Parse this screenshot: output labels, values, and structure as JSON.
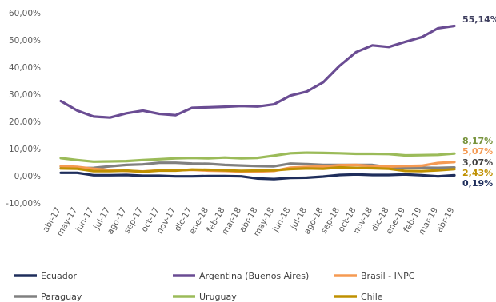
{
  "chart_data": {
    "type": "line",
    "title": "",
    "xlabel": "",
    "ylabel": "",
    "ylim": [
      -10,
      60
    ],
    "yticks": [
      "-10,00%",
      "0,00%",
      "10,00%",
      "20,00%",
      "30,00%",
      "40,00%",
      "50,00%",
      "60,00%"
    ],
    "ytick_values": [
      -10,
      0,
      10,
      20,
      30,
      40,
      50,
      60
    ],
    "grid": false,
    "legend_position": "bottom",
    "categories": [
      "abr-17",
      "may-17",
      "jun-17",
      "jul-17",
      "ago-17",
      "sep-17",
      "oct-17",
      "nov-17",
      "dic-17",
      "ene-18",
      "feb-18",
      "mar-18",
      "abr-18",
      "may-18",
      "jun-18",
      "jul-18",
      "ago-18",
      "sep-18",
      "oct-18",
      "nov-18",
      "dic-18",
      "ene-19",
      "feb-19",
      "mar-19",
      "abr-19"
    ],
    "series": [
      {
        "name": "Ecuador",
        "color": "#1f2e5c",
        "end_label": "0,19%",
        "values": [
          1.1,
          1.1,
          0.2,
          0.2,
          0.3,
          0.0,
          0.0,
          -0.2,
          -0.2,
          -0.1,
          -0.1,
          -0.2,
          -1.0,
          -1.2,
          -0.8,
          -0.7,
          -0.3,
          0.3,
          0.5,
          0.3,
          0.3,
          0.5,
          0.2,
          -0.2,
          0.19
        ]
      },
      {
        "name": "Argentina (Buenos Aires)",
        "color": "#6a4c93",
        "end_label": "55,14%",
        "values": [
          27.5,
          24.0,
          21.8,
          21.4,
          23.0,
          24.0,
          22.8,
          22.3,
          25.0,
          25.2,
          25.4,
          25.7,
          25.5,
          26.3,
          29.5,
          31.0,
          34.4,
          40.5,
          45.5,
          48.0,
          47.4,
          49.3,
          51.0,
          54.3,
          55.14
        ]
      },
      {
        "name": "Brasil - INPC",
        "color": "#f59a52",
        "end_label": "5,07%",
        "values": [
          3.6,
          3.3,
          2.6,
          2.1,
          1.8,
          1.6,
          2.0,
          2.0,
          2.2,
          1.9,
          1.8,
          1.6,
          1.6,
          1.8,
          3.0,
          3.3,
          3.4,
          3.9,
          4.0,
          3.6,
          3.4,
          3.6,
          3.7,
          4.7,
          5.07
        ]
      },
      {
        "name": "Paraguay",
        "color": "#808080",
        "end_label": "3,07%",
        "values": [
          3.4,
          2.8,
          2.9,
          3.5,
          4.0,
          4.2,
          4.8,
          4.8,
          4.5,
          4.4,
          4.0,
          3.8,
          3.6,
          3.5,
          4.5,
          4.3,
          4.0,
          4.0,
          4.0,
          4.0,
          3.2,
          3.0,
          3.0,
          2.9,
          3.07
        ]
      },
      {
        "name": "Uruguay",
        "color": "#9bbb59",
        "end_label": "8,17%",
        "values": [
          6.5,
          5.8,
          5.2,
          5.3,
          5.4,
          5.8,
          6.1,
          6.4,
          6.6,
          6.4,
          6.7,
          6.4,
          6.6,
          7.4,
          8.3,
          8.5,
          8.4,
          8.3,
          8.1,
          8.1,
          8.0,
          7.5,
          7.6,
          7.7,
          8.17
        ]
      },
      {
        "name": "Chile",
        "color": "#bf9000",
        "end_label": "2,43%",
        "values": [
          2.7,
          2.6,
          1.7,
          1.7,
          1.9,
          1.5,
          1.9,
          1.9,
          2.3,
          2.2,
          2.0,
          1.8,
          1.9,
          2.0,
          2.5,
          2.7,
          2.6,
          3.1,
          2.9,
          2.8,
          2.6,
          1.8,
          1.7,
          2.0,
          2.43
        ]
      }
    ]
  }
}
